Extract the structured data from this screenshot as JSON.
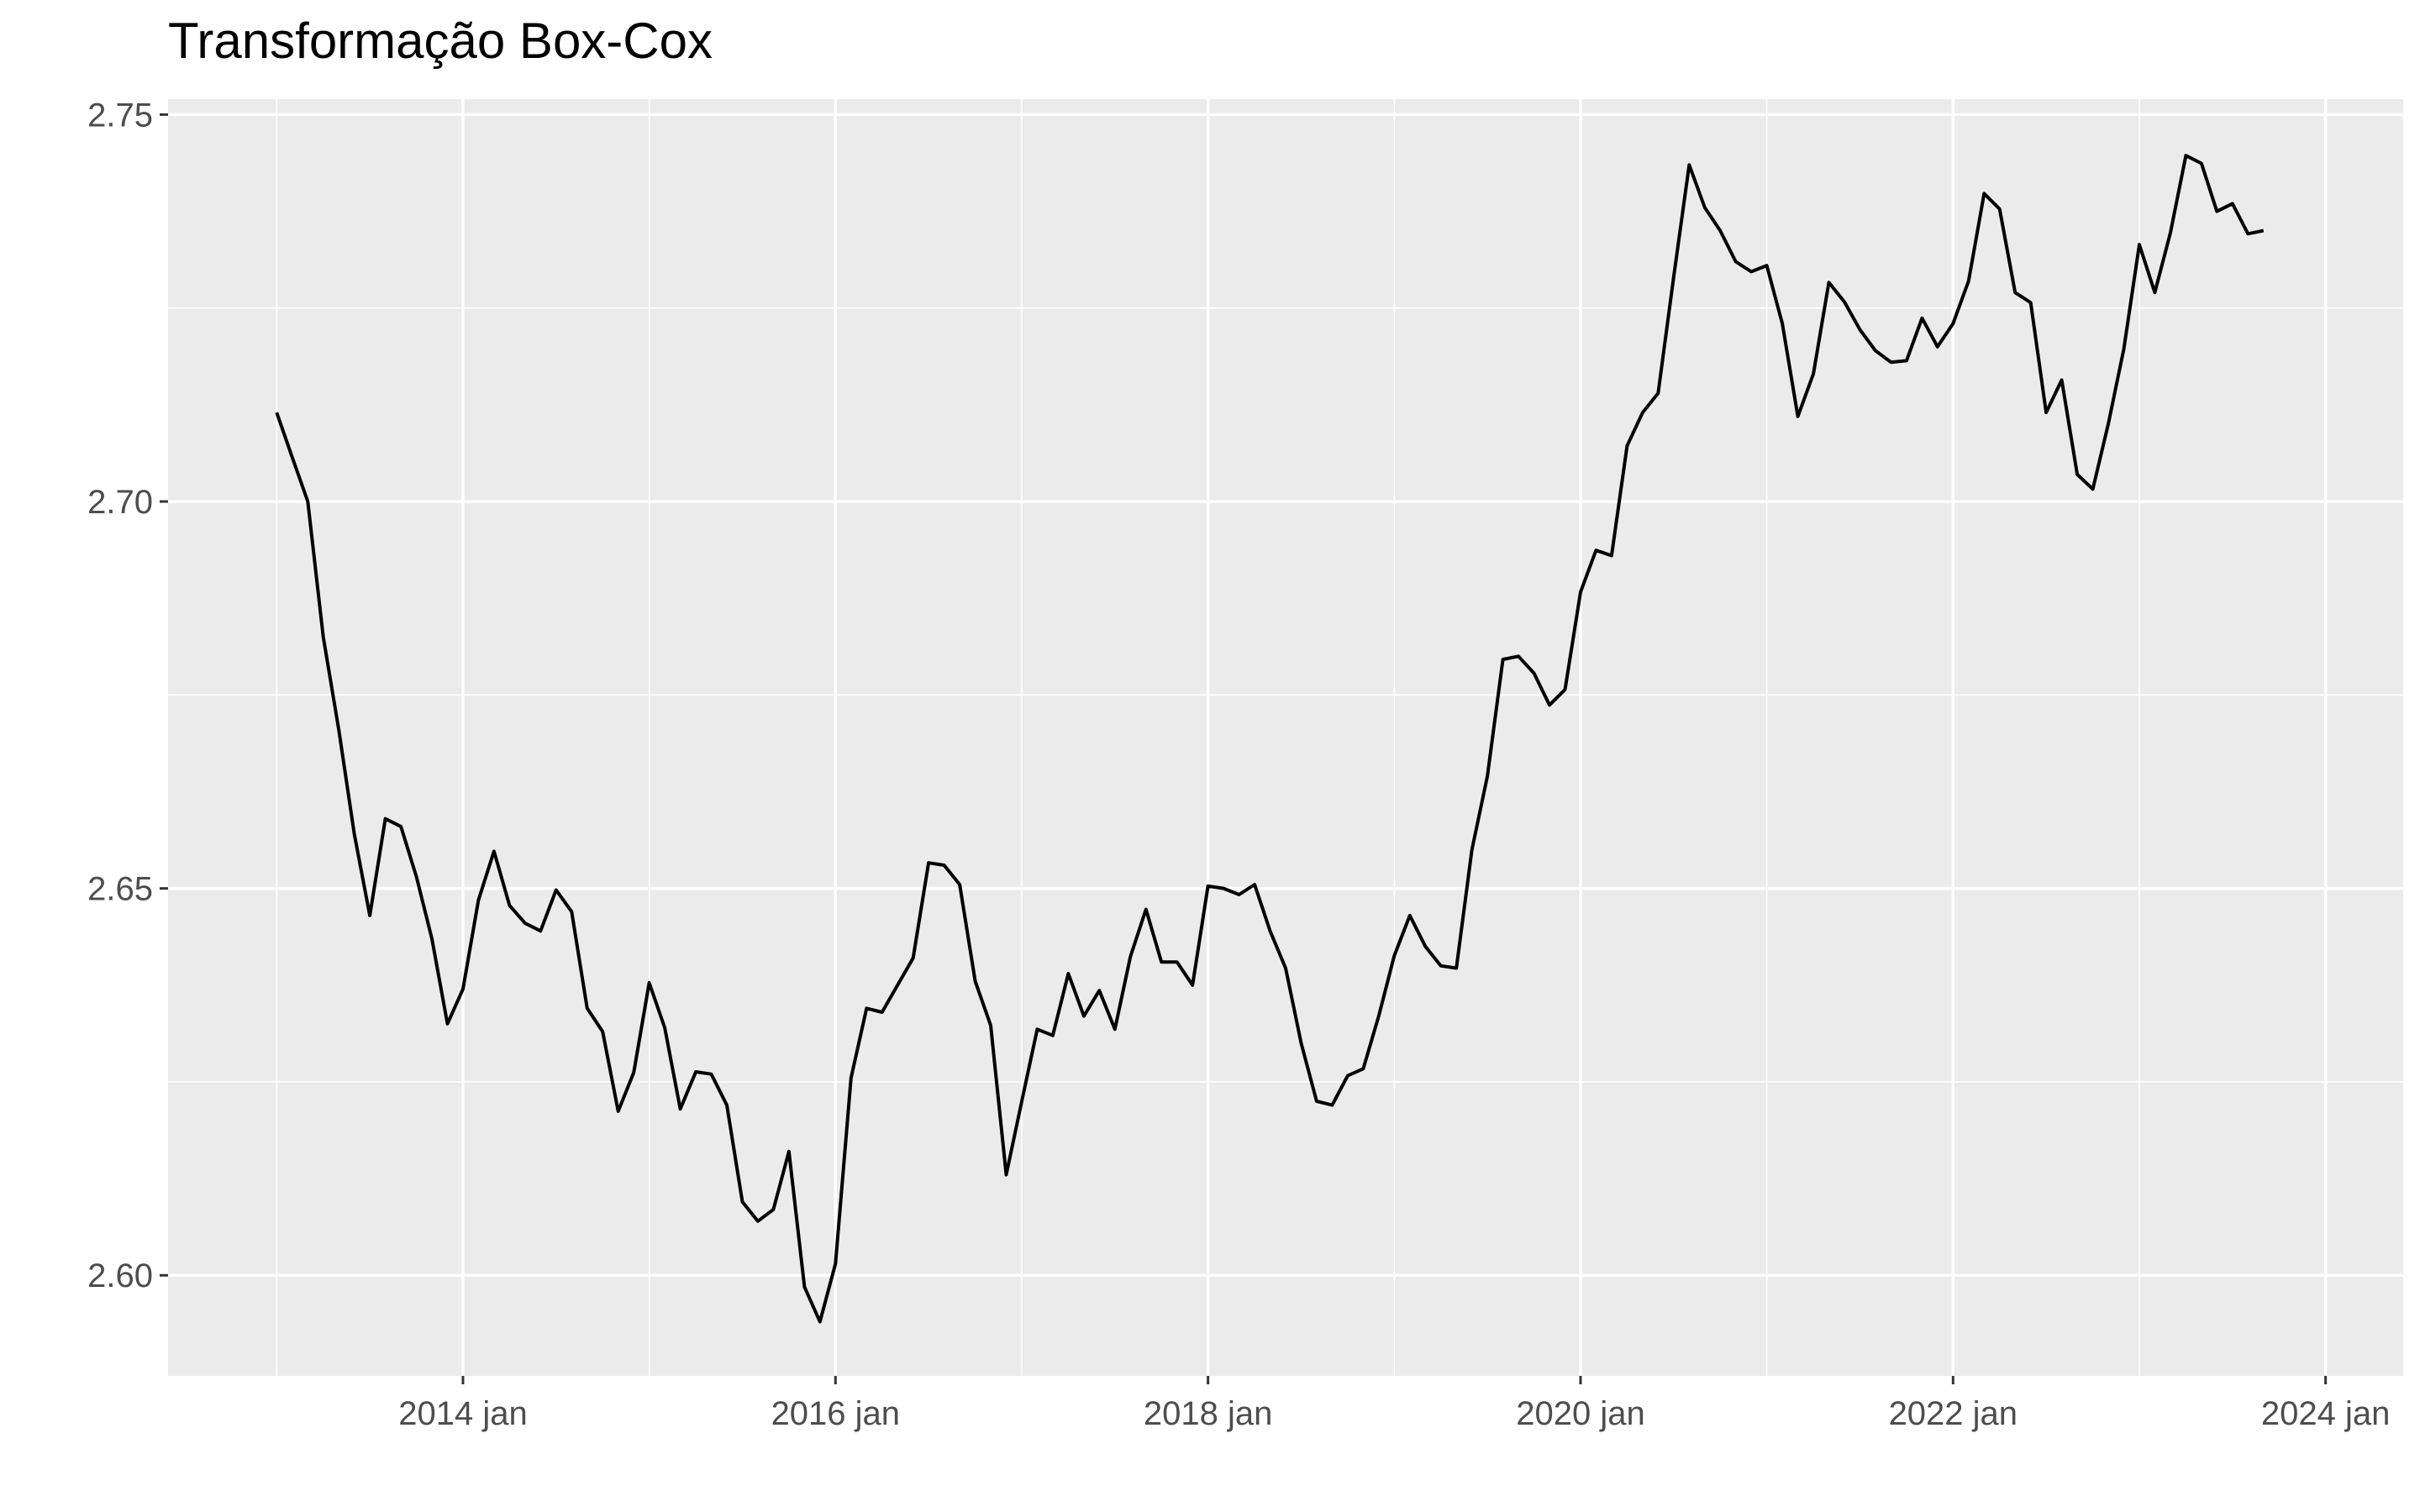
{
  "chart_data": {
    "type": "line",
    "title": "Transformação Box-Cox",
    "xlabel": "",
    "ylabel": "",
    "x_ticks": [
      {
        "label": "2014 jan",
        "t": 2014.0
      },
      {
        "label": "2016 jan",
        "t": 2016.0
      },
      {
        "label": "2018 jan",
        "t": 2018.0
      },
      {
        "label": "2020 jan",
        "t": 2020.0
      },
      {
        "label": "2022 jan",
        "t": 2022.0
      },
      {
        "label": "2024 jan",
        "t": 2024.0
      }
    ],
    "y_ticks": [
      {
        "label": "2.60",
        "v": 2.6
      },
      {
        "label": "2.65",
        "v": 2.65
      },
      {
        "label": "2.70",
        "v": 2.7
      },
      {
        "label": "2.75",
        "v": 2.75
      }
    ],
    "xlim": [
      "2012-06",
      "2024-06"
    ],
    "ylim": [
      2.587,
      2.752
    ],
    "grid": true,
    "colors": {
      "panel_background": "#EBEBEB",
      "grid_line": "#FFFFFF",
      "series_line": "#000000",
      "tick_text": "#4D4D4D",
      "tick_mark": "#333333"
    },
    "series": [
      {
        "x": [
          "2013-01",
          "2013-02",
          "2013-03",
          "2013-04",
          "2013-05",
          "2013-06",
          "2013-07",
          "2013-08",
          "2013-09",
          "2013-10",
          "2013-11",
          "2013-12",
          "2014-01",
          "2014-02",
          "2014-03",
          "2014-04",
          "2014-05",
          "2014-06",
          "2014-07",
          "2014-08",
          "2014-09",
          "2014-10",
          "2014-11",
          "2014-12",
          "2015-01",
          "2015-02",
          "2015-03",
          "2015-04",
          "2015-05",
          "2015-06",
          "2015-07",
          "2015-08",
          "2015-09",
          "2015-10",
          "2015-11",
          "2015-12",
          "2016-01",
          "2016-02",
          "2016-03",
          "2016-04",
          "2016-05",
          "2016-06",
          "2016-07",
          "2016-08",
          "2016-09",
          "2016-10",
          "2016-11",
          "2016-12",
          "2017-01",
          "2017-02",
          "2017-03",
          "2017-04",
          "2017-05",
          "2017-06",
          "2017-07",
          "2017-08",
          "2017-09",
          "2017-10",
          "2017-11",
          "2017-12",
          "2018-01",
          "2018-02",
          "2018-03",
          "2018-04",
          "2018-05",
          "2018-06",
          "2018-07",
          "2018-08",
          "2018-09",
          "2018-10",
          "2018-11",
          "2018-12",
          "2019-01",
          "2019-02",
          "2019-03",
          "2019-04",
          "2019-05",
          "2019-06",
          "2019-07",
          "2019-08",
          "2019-09",
          "2019-10",
          "2019-11",
          "2019-12",
          "2020-01",
          "2020-02",
          "2020-03",
          "2020-04",
          "2020-05",
          "2020-06",
          "2020-07",
          "2020-08",
          "2020-09",
          "2020-10",
          "2020-11",
          "2020-12",
          "2021-01",
          "2021-02",
          "2021-03",
          "2021-04",
          "2021-05",
          "2021-06",
          "2021-07",
          "2021-08",
          "2021-09",
          "2021-10",
          "2021-11",
          "2021-12",
          "2022-01",
          "2022-02",
          "2022-03",
          "2022-04",
          "2022-05",
          "2022-06",
          "2022-07",
          "2022-08",
          "2022-09",
          "2022-10",
          "2022-11",
          "2022-12",
          "2023-01",
          "2023-02",
          "2023-03",
          "2023-04",
          "2023-05",
          "2023-06",
          "2023-07",
          "2023-08",
          "2023-09"
        ],
        "y": [
          2.7115,
          2.7057,
          2.7,
          2.6825,
          2.6705,
          2.657,
          2.6465,
          2.659,
          2.658,
          2.6515,
          2.6435,
          2.6325,
          2.637,
          2.6485,
          2.6548,
          2.6478,
          2.6455,
          2.6445,
          2.6498,
          2.647,
          2.6345,
          2.6315,
          2.6212,
          2.6262,
          2.6378,
          2.632,
          2.6215,
          2.6263,
          2.626,
          2.622,
          2.6095,
          2.607,
          2.6085,
          2.616,
          2.5985,
          2.594,
          2.6015,
          2.6255,
          2.6345,
          2.634,
          2.6375,
          2.641,
          2.6533,
          2.653,
          2.6505,
          2.638,
          2.6323,
          2.613,
          2.6225,
          2.6318,
          2.631,
          2.639,
          2.6335,
          2.6368,
          2.6318,
          2.6412,
          2.6473,
          2.6405,
          2.6405,
          2.6375,
          2.6503,
          2.65,
          2.6492,
          2.6505,
          2.6445,
          2.6397,
          2.63,
          2.6225,
          2.622,
          2.6258,
          2.6267,
          2.6335,
          2.6413,
          2.6465,
          2.6425,
          2.64,
          2.6397,
          2.655,
          2.6645,
          2.6796,
          2.68,
          2.6778,
          2.6737,
          2.6757,
          2.6883,
          2.6937,
          2.693,
          2.7072,
          2.7115,
          2.714,
          2.729,
          2.7435,
          2.738,
          2.735,
          2.731,
          2.7297,
          2.7305,
          2.723,
          2.711,
          2.7165,
          2.7283,
          2.7258,
          2.7222,
          2.7195,
          2.718,
          2.7182,
          2.7237,
          2.72,
          2.723,
          2.7285,
          2.7398,
          2.7378,
          2.727,
          2.7257,
          2.7115,
          2.7157,
          2.7035,
          2.7016,
          2.71,
          2.7197,
          2.7332,
          2.727,
          2.7347,
          2.7447,
          2.7437,
          2.7375,
          2.7385,
          2.7346,
          2.735
        ]
      }
    ]
  }
}
